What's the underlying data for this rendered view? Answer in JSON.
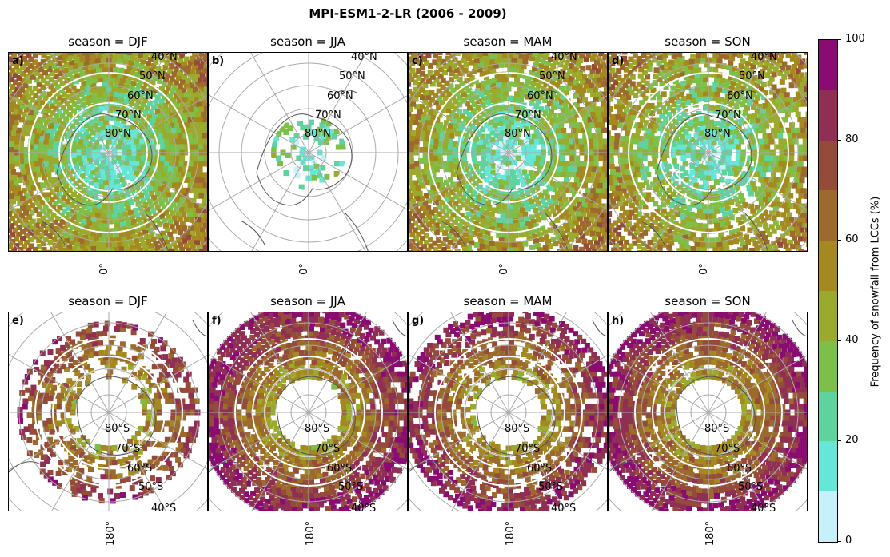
{
  "title": "MPI-ESM1-2-LR (2006 - 2009)",
  "panels": [
    {
      "label": "a)",
      "title": "season = DJF",
      "hemisphere": "north",
      "lon_label": "0°",
      "lat_labels": [
        "40°N",
        "50°N",
        "60°N",
        "70°N",
        "80°N"
      ],
      "coverage": 0.92
    },
    {
      "label": "b)",
      "title": "season = JJA",
      "hemisphere": "north",
      "lon_label": "0°",
      "lat_labels": [
        "40°N",
        "50°N",
        "60°N",
        "70°N",
        "80°N"
      ],
      "coverage": 0.35
    },
    {
      "label": "c)",
      "title": "season = MAM",
      "hemisphere": "north",
      "lon_label": "0°",
      "lat_labels": [
        "40°N",
        "50°N",
        "60°N",
        "70°N",
        "80°N"
      ],
      "coverage": 0.85
    },
    {
      "label": "d)",
      "title": "season = SON",
      "hemisphere": "north",
      "lon_label": "0°",
      "lat_labels": [
        "40°N",
        "50°N",
        "60°N",
        "70°N",
        "80°N"
      ],
      "coverage": 0.8
    },
    {
      "label": "e)",
      "title": "season = DJF",
      "hemisphere": "south",
      "lon_label": "180°",
      "lat_labels": [
        "80°S",
        "70°S",
        "60°S",
        "50°S",
        "40°S"
      ],
      "coverage": 0.5
    },
    {
      "label": "f)",
      "title": "season = JJA",
      "hemisphere": "south",
      "lon_label": "180°",
      "lat_labels": [
        "80°S",
        "70°S",
        "60°S",
        "50°S",
        "40°S"
      ],
      "coverage": 0.85
    },
    {
      "label": "g)",
      "title": "season = MAM",
      "hemisphere": "south",
      "lon_label": "180°",
      "lat_labels": [
        "80°S",
        "70°S",
        "60°S",
        "50°S",
        "40°S"
      ],
      "coverage": 0.7
    },
    {
      "label": "h)",
      "title": "season = SON",
      "hemisphere": "south",
      "lon_label": "180°",
      "lat_labels": [
        "80°S",
        "70°S",
        "60°S",
        "50°S",
        "40°S"
      ],
      "coverage": 0.85
    }
  ],
  "colorbar": {
    "label": "Frequency of snowfall from LCCs (%)",
    "ticks": [
      "0",
      "20",
      "40",
      "60",
      "80",
      "100"
    ],
    "min": 0,
    "max": 100,
    "step": 10,
    "colors": [
      "#c6f1fb",
      "#66e6d7",
      "#5fd39e",
      "#7ebf4a",
      "#9aaa2c",
      "#a3891f",
      "#9c6a2c",
      "#944b3a",
      "#8f2f53",
      "#8a0c72"
    ]
  }
}
